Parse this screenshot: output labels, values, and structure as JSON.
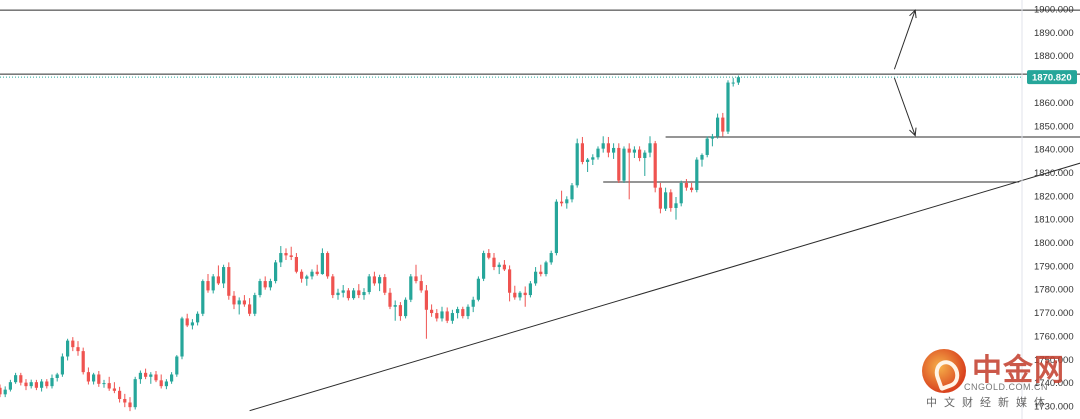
{
  "chart_data": {
    "type": "candlestick",
    "title": "",
    "xlabel": "",
    "ylabel": "",
    "ylim": [
      1728,
      1902
    ],
    "y_ticks": [
      "1900.000",
      "1890.000",
      "1880.000",
      "1870.000",
      "1860.000",
      "1850.000",
      "1840.000",
      "1830.000",
      "1820.000",
      "1810.000",
      "1800.000",
      "1790.000",
      "1780.000",
      "1770.000",
      "1760.000",
      "1750.000",
      "1740.000",
      "1730.000"
    ],
    "last_price": 1870.82,
    "last_price_label": "1870.820",
    "up_color": "#26a69a",
    "down_color": "#ef5350",
    "price_line_color": "#26a69a",
    "grid": false,
    "horizontal_lines": [
      {
        "y": 1899.5,
        "x_start": 0,
        "x_end": 208
      },
      {
        "y": 1872.1,
        "x_start": 0,
        "x_end": 213
      },
      {
        "y": 1845.2,
        "x_start": 128,
        "x_end": 219
      },
      {
        "y": 1825.9,
        "x_start": 116,
        "x_end": 196
      }
    ],
    "trendline": {
      "x_start": 48,
      "y_start": 1728.0,
      "x_end": 221,
      "y_end": 1842.8
    },
    "arrows": [
      {
        "x1": 172,
        "y1": 1874.2,
        "x2": 176,
        "y2": 1899.5
      },
      {
        "x1": 172,
        "y1": 1870.5,
        "x2": 176,
        "y2": 1845.8
      }
    ],
    "candles": [
      [
        0,
        1737.8,
        1739.2,
        1733.8,
        1735.0
      ],
      [
        1,
        1735.0,
        1738.4,
        1733.8,
        1737.0
      ],
      [
        2,
        1737.0,
        1741.2,
        1736.2,
        1740.2
      ],
      [
        3,
        1740.2,
        1744.2,
        1739.5,
        1743.2
      ],
      [
        4,
        1743.2,
        1744.2,
        1738.8,
        1740.0
      ],
      [
        5,
        1740.0,
        1741.5,
        1736.8,
        1738.5
      ],
      [
        6,
        1738.5,
        1741.3,
        1737.5,
        1740.2
      ],
      [
        7,
        1740.2,
        1741.2,
        1736.8,
        1737.8
      ],
      [
        8,
        1737.8,
        1741.5,
        1736.2,
        1740.5
      ],
      [
        9,
        1740.5,
        1741.5,
        1737.5,
        1738.5
      ],
      [
        10,
        1738.5,
        1743.5,
        1737.5,
        1742.0
      ],
      [
        11,
        1742.0,
        1744.2,
        1740.5,
        1743.5
      ],
      [
        12,
        1743.5,
        1752.5,
        1742.5,
        1751.2
      ],
      [
        13,
        1751.2,
        1758.8,
        1749.5,
        1758.0
      ],
      [
        14,
        1758.0,
        1759.5,
        1753.5,
        1755.2
      ],
      [
        15,
        1755.2,
        1757.8,
        1751.5,
        1753.5
      ],
      [
        16,
        1753.5,
        1755.0,
        1743.5,
        1744.5
      ],
      [
        17,
        1744.5,
        1746.5,
        1739.2,
        1740.5
      ],
      [
        18,
        1740.5,
        1744.2,
        1739.2,
        1743.5
      ],
      [
        19,
        1743.5,
        1745.0,
        1738.2,
        1739.5
      ],
      [
        20,
        1739.5,
        1741.2,
        1737.8,
        1739.8
      ],
      [
        21,
        1739.8,
        1742.5,
        1736.5,
        1737.5
      ],
      [
        22,
        1737.5,
        1740.2,
        1735.5,
        1736.5
      ],
      [
        23,
        1736.5,
        1738.2,
        1731.5,
        1733.0
      ],
      [
        24,
        1733.0,
        1735.2,
        1729.5,
        1731.5
      ],
      [
        25,
        1731.5,
        1733.8,
        1727.8,
        1729.5
      ],
      [
        26,
        1729.5,
        1742.5,
        1728.5,
        1741.5
      ],
      [
        27,
        1741.5,
        1745.2,
        1739.5,
        1744.2
      ],
      [
        28,
        1744.2,
        1746.0,
        1741.5,
        1742.5
      ],
      [
        29,
        1742.5,
        1744.5,
        1739.5,
        1743.5
      ],
      [
        30,
        1743.5,
        1745.0,
        1740.2,
        1741.0
      ],
      [
        31,
        1741.0,
        1743.5,
        1737.5,
        1738.5
      ],
      [
        32,
        1738.5,
        1741.5,
        1737.2,
        1740.5
      ],
      [
        33,
        1740.5,
        1744.5,
        1739.5,
        1743.5
      ],
      [
        34,
        1743.5,
        1751.8,
        1742.5,
        1751.2
      ],
      [
        35,
        1751.2,
        1768.2,
        1750.0,
        1767.5
      ],
      [
        36,
        1767.5,
        1769.5,
        1763.8,
        1764.5
      ],
      [
        37,
        1764.5,
        1767.2,
        1762.8,
        1765.8
      ],
      [
        38,
        1765.8,
        1770.5,
        1764.5,
        1769.5
      ],
      [
        39,
        1769.5,
        1784.2,
        1768.5,
        1783.5
      ],
      [
        40,
        1783.5,
        1786.5,
        1778.5,
        1779.5
      ],
      [
        41,
        1779.5,
        1786.5,
        1778.2,
        1785.5
      ],
      [
        42,
        1785.5,
        1790.2,
        1781.8,
        1782.5
      ],
      [
        43,
        1782.5,
        1790.5,
        1780.5,
        1789.5
      ],
      [
        44,
        1789.5,
        1791.5,
        1775.5,
        1777.2
      ],
      [
        45,
        1777.2,
        1779.2,
        1771.5,
        1773.5
      ],
      [
        46,
        1773.5,
        1776.5,
        1769.2,
        1775.2
      ],
      [
        47,
        1775.2,
        1777.5,
        1772.5,
        1773.5
      ],
      [
        48,
        1773.5,
        1776.2,
        1768.5,
        1769.5
      ],
      [
        49,
        1769.5,
        1778.5,
        1768.5,
        1777.5
      ],
      [
        50,
        1777.5,
        1784.5,
        1776.5,
        1783.5
      ],
      [
        51,
        1783.5,
        1785.5,
        1779.8,
        1780.8
      ],
      [
        52,
        1780.8,
        1784.5,
        1779.5,
        1783.5
      ],
      [
        53,
        1783.5,
        1792.5,
        1782.5,
        1791.5
      ],
      [
        54,
        1791.5,
        1798.5,
        1789.5,
        1795.5
      ],
      [
        55,
        1795.5,
        1797.5,
        1792.5,
        1794.5
      ],
      [
        56,
        1794.5,
        1798.2,
        1792.5,
        1793.8
      ],
      [
        57,
        1793.8,
        1795.5,
        1786.8,
        1787.5
      ],
      [
        58,
        1787.5,
        1788.5,
        1782.8,
        1784.5
      ],
      [
        59,
        1784.5,
        1786.2,
        1781.5,
        1785.5
      ],
      [
        60,
        1785.5,
        1788.5,
        1784.2,
        1787.5
      ],
      [
        61,
        1787.5,
        1790.5,
        1785.8,
        1786.5
      ],
      [
        62,
        1786.5,
        1797.5,
        1786.2,
        1795.5
      ],
      [
        63,
        1795.5,
        1796.2,
        1784.5,
        1785.5
      ],
      [
        64,
        1785.5,
        1786.5,
        1776.2,
        1777.5
      ],
      [
        65,
        1777.5,
        1780.2,
        1775.5,
        1778.5
      ],
      [
        66,
        1778.5,
        1781.8,
        1776.5,
        1779.5
      ],
      [
        67,
        1779.5,
        1780.5,
        1775.2,
        1776.2
      ],
      [
        68,
        1776.2,
        1780.5,
        1775.5,
        1779.5
      ],
      [
        69,
        1779.5,
        1782.2,
        1776.2,
        1777.5
      ],
      [
        70,
        1777.5,
        1780.5,
        1775.5,
        1778.8
      ],
      [
        71,
        1778.8,
        1786.5,
        1777.8,
        1785.5
      ],
      [
        72,
        1785.5,
        1787.5,
        1781.5,
        1782.5
      ],
      [
        73,
        1782.5,
        1786.2,
        1779.2,
        1785.2
      ],
      [
        74,
        1785.2,
        1786.5,
        1777.5,
        1778.5
      ],
      [
        75,
        1778.5,
        1780.5,
        1771.5,
        1772.5
      ],
      [
        76,
        1772.5,
        1775.2,
        1766.5,
        1773.2
      ],
      [
        77,
        1773.2,
        1774.5,
        1766.5,
        1768.5
      ],
      [
        78,
        1768.5,
        1776.5,
        1767.5,
        1775.5
      ],
      [
        79,
        1775.5,
        1786.5,
        1774.5,
        1785.5
      ],
      [
        80,
        1785.5,
        1790.5,
        1782.5,
        1783.5
      ],
      [
        81,
        1783.5,
        1786.2,
        1778.5,
        1779.5
      ],
      [
        82,
        1779.5,
        1781.8,
        1758.8,
        1771.2
      ],
      [
        83,
        1771.2,
        1773.5,
        1768.2,
        1769.8
      ],
      [
        84,
        1769.8,
        1771.5,
        1766.2,
        1767.5
      ],
      [
        85,
        1767.5,
        1772.5,
        1766.2,
        1770.5
      ],
      [
        86,
        1770.5,
        1772.2,
        1765.5,
        1766.5
      ],
      [
        87,
        1766.5,
        1771.2,
        1765.2,
        1769.8
      ],
      [
        88,
        1769.8,
        1772.5,
        1767.5,
        1771.5
      ],
      [
        89,
        1771.5,
        1772.5,
        1767.5,
        1768.5
      ],
      [
        90,
        1768.5,
        1773.5,
        1767.2,
        1772.5
      ],
      [
        91,
        1772.5,
        1776.8,
        1770.2,
        1775.5
      ],
      [
        92,
        1775.5,
        1785.5,
        1774.8,
        1784.5
      ],
      [
        93,
        1784.5,
        1796.5,
        1783.5,
        1795.5
      ],
      [
        94,
        1795.5,
        1797.2,
        1792.8,
        1793.5
      ],
      [
        95,
        1793.5,
        1795.5,
        1788.2,
        1789.5
      ],
      [
        96,
        1789.5,
        1791.5,
        1786.5,
        1790.5
      ],
      [
        97,
        1790.5,
        1792.5,
        1787.8,
        1788.5
      ],
      [
        98,
        1788.5,
        1790.2,
        1774.8,
        1778.5
      ],
      [
        99,
        1778.5,
        1781.5,
        1775.5,
        1776.5
      ],
      [
        100,
        1776.5,
        1779.2,
        1775.2,
        1778.5
      ],
      [
        101,
        1778.5,
        1781.2,
        1772.5,
        1777.5
      ],
      [
        102,
        1777.5,
        1783.5,
        1776.5,
        1782.5
      ],
      [
        103,
        1782.5,
        1789.5,
        1781.5,
        1787.5
      ],
      [
        104,
        1787.5,
        1790.5,
        1785.5,
        1786.5
      ],
      [
        105,
        1786.5,
        1792.2,
        1785.5,
        1791.5
      ],
      [
        106,
        1791.5,
        1796.5,
        1790.5,
        1795.5
      ],
      [
        107,
        1795.5,
        1818.5,
        1794.5,
        1817.5
      ],
      [
        108,
        1817.5,
        1822.2,
        1815.5,
        1816.8
      ],
      [
        109,
        1816.8,
        1819.8,
        1814.5,
        1818.5
      ],
      [
        110,
        1818.5,
        1825.5,
        1817.2,
        1824.5
      ],
      [
        111,
        1824.5,
        1844.5,
        1823.5,
        1842.5
      ],
      [
        112,
        1842.5,
        1845.2,
        1833.5,
        1834.5
      ],
      [
        113,
        1834.5,
        1836.2,
        1830.2,
        1835.5
      ],
      [
        114,
        1835.5,
        1837.8,
        1833.2,
        1836.5
      ],
      [
        115,
        1836.5,
        1841.2,
        1835.5,
        1840.2
      ],
      [
        116,
        1840.2,
        1845.5,
        1838.5,
        1842.5
      ],
      [
        117,
        1842.5,
        1845.2,
        1836.5,
        1838.5
      ],
      [
        118,
        1838.5,
        1842.5,
        1835.8,
        1840.5
      ],
      [
        119,
        1840.5,
        1842.5,
        1825.5,
        1826.5
      ],
      [
        120,
        1826.5,
        1841.2,
        1825.5,
        1840.2
      ],
      [
        121,
        1840.2,
        1842.5,
        1818.5,
        1838.5
      ],
      [
        122,
        1838.5,
        1841.2,
        1836.2,
        1839.8
      ],
      [
        123,
        1839.8,
        1841.2,
        1834.8,
        1836.2
      ],
      [
        124,
        1836.2,
        1839.5,
        1828.5,
        1838.5
      ],
      [
        125,
        1838.5,
        1845.5,
        1836.5,
        1842.5
      ],
      [
        126,
        1842.5,
        1843.5,
        1821.5,
        1823.5
      ],
      [
        127,
        1823.5,
        1825.5,
        1812.5,
        1814.5
      ],
      [
        128,
        1814.5,
        1823.5,
        1813.5,
        1821.5
      ],
      [
        129,
        1821.5,
        1822.8,
        1813.2,
        1814.8
      ],
      [
        130,
        1814.8,
        1819.5,
        1809.8,
        1816.8
      ],
      [
        131,
        1816.8,
        1826.5,
        1815.5,
        1825.5
      ],
      [
        132,
        1825.5,
        1827.2,
        1822.2,
        1823.5
      ],
      [
        133,
        1823.5,
        1825.5,
        1821.5,
        1822.5
      ],
      [
        134,
        1822.5,
        1836.5,
        1821.5,
        1835.5
      ],
      [
        135,
        1835.5,
        1838.2,
        1832.5,
        1837.5
      ],
      [
        136,
        1837.5,
        1845.5,
        1836.5,
        1844.5
      ],
      [
        137,
        1844.5,
        1846.5,
        1841.2,
        1845.5
      ],
      [
        138,
        1845.5,
        1855.2,
        1844.5,
        1853.5
      ],
      [
        139,
        1853.5,
        1855.5,
        1845.5,
        1847.5
      ],
      [
        140,
        1847.5,
        1869.5,
        1846.5,
        1868.5
      ],
      [
        141,
        1868.5,
        1870.5,
        1866.8,
        1868.5
      ],
      [
        142,
        1868.5,
        1871.5,
        1867.5,
        1870.8
      ]
    ]
  }
}
